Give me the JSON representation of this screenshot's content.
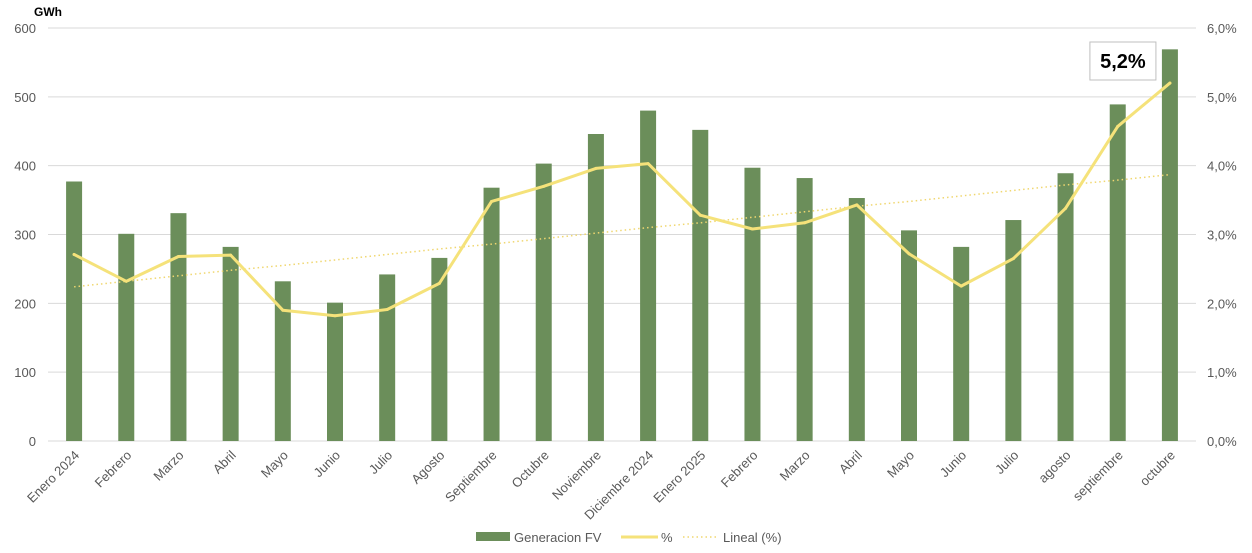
{
  "chart_data": {
    "type": "bar",
    "y_unit": "GWh",
    "categories": [
      "Enero 2024",
      "Febrero",
      "Marzo",
      "Abril",
      "Mayo",
      "Junio",
      "Julio",
      "Agosto",
      "Septiembre",
      "Octubre",
      "Noviembre",
      "Diciembre 2024",
      "Enero 2025",
      "Febrero",
      "Marzo",
      "Abril",
      "Mayo",
      "Junio",
      "Julio",
      "agosto",
      "septiembre",
      "octubre"
    ],
    "series": [
      {
        "name": "Generacion FV",
        "type": "bar",
        "axis": "left",
        "values": [
          377,
          301,
          331,
          282,
          232,
          201,
          242,
          266,
          368,
          403,
          446,
          480,
          452,
          397,
          382,
          353,
          306,
          282,
          321,
          389,
          489,
          569
        ]
      },
      {
        "name": "%",
        "type": "line",
        "axis": "right",
        "values": [
          2.71,
          2.32,
          2.68,
          2.7,
          1.9,
          1.82,
          1.91,
          2.29,
          3.48,
          3.7,
          3.96,
          4.03,
          3.28,
          3.08,
          3.17,
          3.43,
          2.72,
          2.25,
          2.65,
          3.38,
          4.57,
          5.2
        ]
      },
      {
        "name": "Lineal (%)",
        "type": "trendline",
        "axis": "right",
        "values": [
          2.24,
          2.32,
          2.4,
          2.48,
          2.55,
          2.63,
          2.71,
          2.79,
          2.86,
          2.94,
          3.02,
          3.1,
          3.17,
          3.25,
          3.33,
          3.41,
          3.48,
          3.56,
          3.64,
          3.72,
          3.79,
          3.87
        ]
      }
    ],
    "y_left": {
      "min": 0,
      "max": 600,
      "ticks": [
        0,
        100,
        200,
        300,
        400,
        500,
        600
      ],
      "tick_labels": [
        "0",
        "100",
        "200",
        "300",
        "400",
        "500",
        "600"
      ]
    },
    "y_right": {
      "min": 0,
      "max": 6,
      "ticks": [
        0,
        1,
        2,
        3,
        4,
        5,
        6
      ],
      "tick_labels": [
        "0,0%",
        "1,0%",
        "2,0%",
        "3,0%",
        "4,0%",
        "5,0%",
        "6,0%"
      ]
    },
    "grid": true,
    "legend_position": "bottom",
    "annotation": {
      "text": "5,2%",
      "target_index": 21,
      "series": "%"
    },
    "colors": {
      "bar": "#6b8e5a",
      "line": "#f5e27a",
      "trend": "#f0d770",
      "grid": "#d9d9d9",
      "axis_text": "#595959"
    }
  }
}
